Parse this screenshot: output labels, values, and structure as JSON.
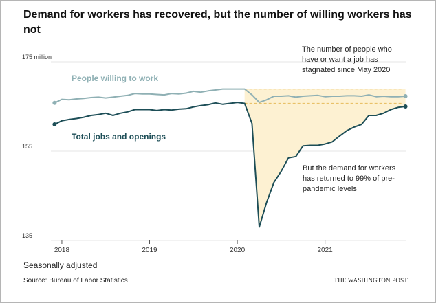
{
  "header": {
    "title": "Demand for workers has recovered, but the number of willing workers has not"
  },
  "footer": {
    "note": "Seasonally adjusted",
    "source": "Source: Bureau of Labor Statistics",
    "credit": "THE WASHINGTON POST"
  },
  "chart_data": {
    "type": "line",
    "title": "Demand for workers has recovered, but the number of willing workers has not",
    "xlabel": "",
    "ylabel": "",
    "unit_label": "175 million",
    "ylim": [
      135,
      175
    ],
    "xlim": [
      2017.875,
      2021.92
    ],
    "grid": true,
    "x_ticks": [
      {
        "value": 2018,
        "label": "2018"
      },
      {
        "value": 2019,
        "label": "2019"
      },
      {
        "value": 2020,
        "label": "2020"
      },
      {
        "value": 2021,
        "label": "2021"
      }
    ],
    "y_ticks": [
      {
        "value": 175,
        "label": "175 million"
      },
      {
        "value": 155,
        "label": "155"
      },
      {
        "value": 135,
        "label": "135"
      }
    ],
    "x": [
      2017.917,
      2018.0,
      2018.083,
      2018.167,
      2018.25,
      2018.333,
      2018.417,
      2018.5,
      2018.583,
      2018.667,
      2018.75,
      2018.833,
      2018.917,
      2019.0,
      2019.083,
      2019.167,
      2019.25,
      2019.333,
      2019.417,
      2019.5,
      2019.583,
      2019.667,
      2019.75,
      2019.833,
      2019.917,
      2020.0,
      2020.083,
      2020.167,
      2020.25,
      2020.333,
      2020.417,
      2020.5,
      2020.583,
      2020.667,
      2020.75,
      2020.833,
      2020.917,
      2021.0,
      2021.083,
      2021.167,
      2021.25,
      2021.333,
      2021.417,
      2021.5,
      2021.583,
      2021.667,
      2021.75,
      2021.833,
      2021.917
    ],
    "series": [
      {
        "name": "People willing to work",
        "color": "#8fb0b4",
        "values": [
          165.8,
          166.6,
          166.5,
          166.7,
          166.8,
          167.0,
          167.1,
          166.9,
          167.1,
          167.3,
          167.5,
          167.9,
          167.8,
          167.8,
          167.7,
          167.6,
          167.9,
          167.8,
          168.0,
          168.4,
          168.2,
          168.5,
          168.7,
          168.9,
          168.9,
          168.9,
          168.9,
          167.6,
          165.9,
          166.5,
          167.3,
          167.3,
          167.4,
          167.1,
          167.3,
          167.4,
          167.5,
          167.2,
          167.3,
          167.3,
          167.4,
          167.4,
          167.3,
          167.6,
          167.2,
          167.3,
          167.2,
          167.2,
          167.3
        ],
        "end_label": "People willing to work"
      },
      {
        "name": "Total jobs and openings",
        "color": "#1d4e57",
        "values": [
          161.0,
          161.8,
          162.1,
          162.3,
          162.6,
          163.0,
          163.2,
          163.5,
          163.0,
          163.5,
          163.8,
          164.3,
          164.3,
          164.3,
          164.1,
          164.3,
          164.2,
          164.4,
          164.5,
          164.9,
          165.2,
          165.4,
          165.8,
          165.5,
          165.7,
          165.9,
          165.7,
          161.2,
          138.0,
          143.5,
          148.0,
          150.5,
          153.5,
          153.8,
          156.2,
          156.3,
          156.3,
          156.6,
          157.1,
          158.4,
          159.6,
          160.4,
          161.0,
          163.0,
          163.0,
          163.5,
          164.3,
          164.8,
          165.0
        ],
        "end_label": "Total jobs and openings"
      }
    ],
    "reference_lines": [
      {
        "name": "willing-workers-baseline",
        "value": 168.9,
        "start_x": 2020.083
      },
      {
        "name": "demand-baseline",
        "value": 165.7,
        "start_x": 2020.083
      }
    ],
    "shaded_region": {
      "from_x": 2020.083,
      "reference_value": 168.9,
      "color": "#fdf1d2"
    },
    "annotations": [
      {
        "name": "annotation-willing-stagnated",
        "lines": [
          "The number of people who",
          "have or want a job has",
          "stagnated since May 2020"
        ]
      },
      {
        "name": "annotation-demand-returned",
        "lines": [
          "But the demand for workers",
          "has returned to 99% of pre-",
          "pandemic levels"
        ]
      }
    ]
  }
}
